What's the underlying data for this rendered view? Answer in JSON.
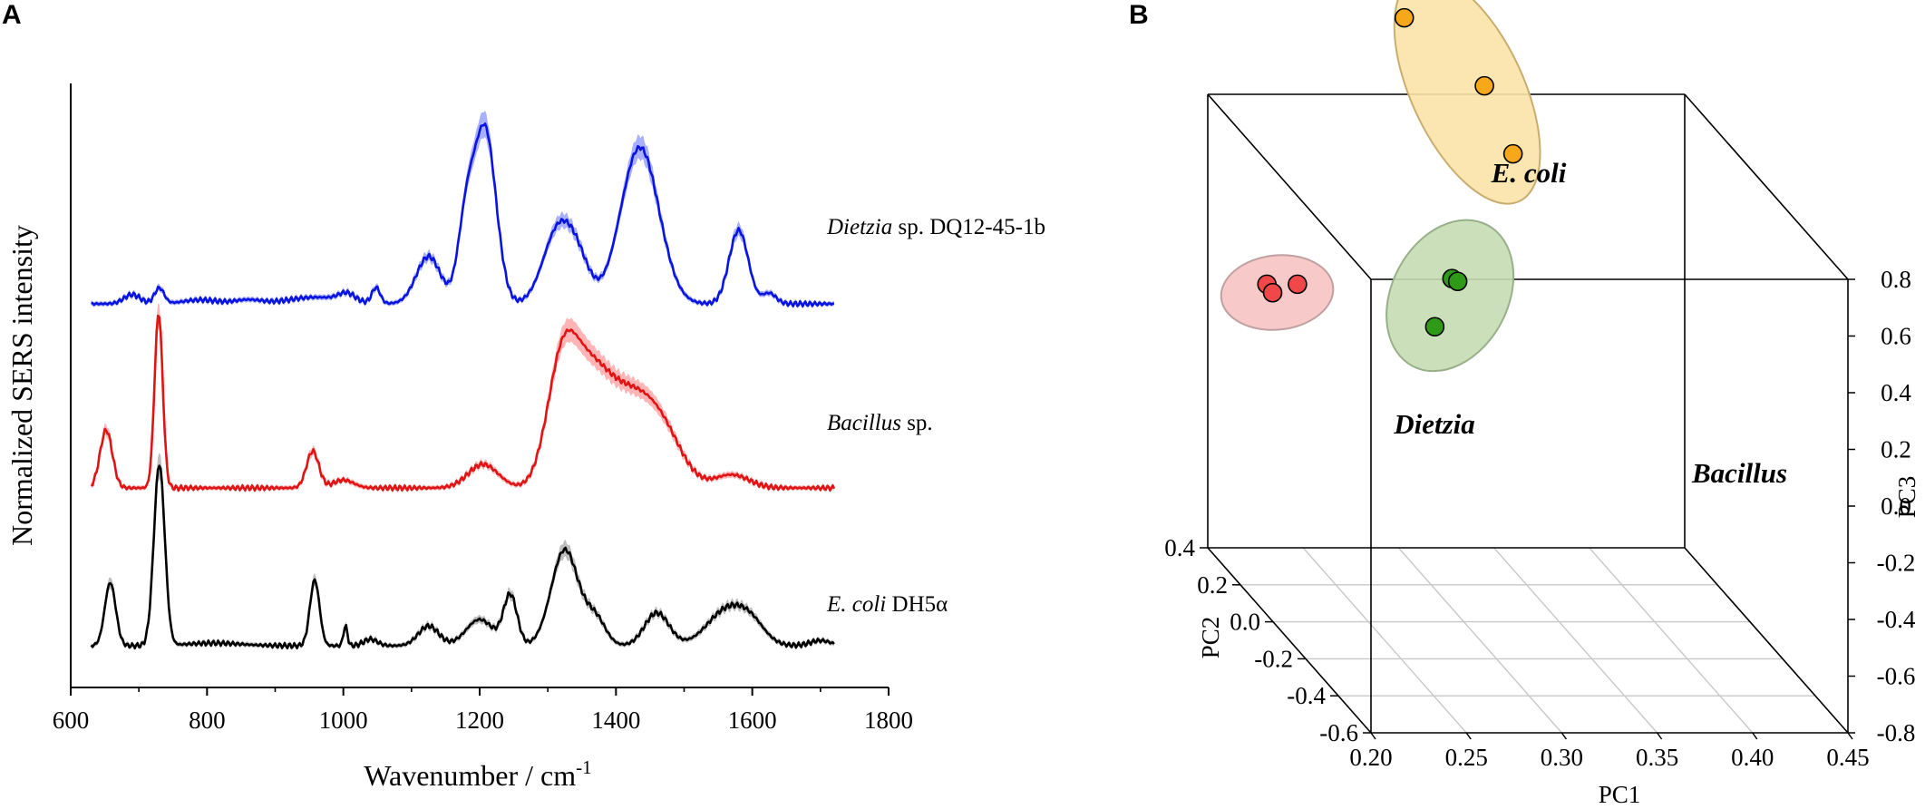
{
  "panels": {
    "a": "A",
    "b": "B"
  },
  "chart_data": [
    {
      "type": "line",
      "panel": "A",
      "title": "",
      "xlabel": "Wavenumber / cm",
      "xlabel_superscript": "-1",
      "ylabel": "Normalized SERS intensity",
      "xlim": [
        600,
        1800
      ],
      "xticks": [
        "600",
        "800",
        "1000",
        "1200",
        "1400",
        "1600",
        "1800"
      ],
      "y_ticks_shown": false,
      "series": [
        {
          "name": "Dietzia sp. DQ12-45-1b",
          "label_italic": "Dietzia",
          "label_rest": " sp. DQ12-45-1b",
          "color": "#0a14e0",
          "band_color": "#8c96ff",
          "offset": 2.55,
          "baseline": 0.05,
          "peaks": [
            [
              690,
              0.07,
              12
            ],
            [
              730,
              0.12,
              7
            ],
            [
              790,
              0.03,
              25
            ],
            [
              860,
              0.03,
              20
            ],
            [
              960,
              0.05,
              40
            ],
            [
              1005,
              0.06,
              12
            ],
            [
              1048,
              0.12,
              6
            ],
            [
              1125,
              0.36,
              18
            ],
            [
              1180,
              0.6,
              12
            ],
            [
              1208,
              1.32,
              16
            ],
            [
              1315,
              0.55,
              22
            ],
            [
              1345,
              0.25,
              18
            ],
            [
              1435,
              1.19,
              28
            ],
            [
              1580,
              0.56,
              14
            ],
            [
              1625,
              0.08,
              10
            ]
          ]
        },
        {
          "name": "Bacillus sp.",
          "label_italic": "Bacillus",
          "label_rest": " sp.",
          "color": "#e01414",
          "band_color": "#ff9c9c",
          "offset": 1.2,
          "baseline": 0.0,
          "peaks": [
            [
              652,
              0.44,
              9
            ],
            [
              729,
              1.33,
              6
            ],
            [
              955,
              0.28,
              9
            ],
            [
              1000,
              0.06,
              15
            ],
            [
              1205,
              0.18,
              22
            ],
            [
              1320,
              0.8,
              22
            ],
            [
              1360,
              0.75,
              30
            ],
            [
              1420,
              0.6,
              35
            ],
            [
              1470,
              0.33,
              30
            ],
            [
              1570,
              0.1,
              25
            ]
          ]
        },
        {
          "name": "E. coli DH5α",
          "label_italic": "E. coli",
          "label_rest": " DH5α",
          "color": "#000000",
          "band_color": "#a8a8a8",
          "offset": 0.0,
          "baseline": 0.0,
          "peaks": [
            [
              658,
              0.48,
              8
            ],
            [
              730,
              1.38,
              8
            ],
            [
              810,
              0.02,
              40
            ],
            [
              958,
              0.5,
              7
            ],
            [
              1003,
              0.15,
              3
            ],
            [
              1040,
              0.05,
              10
            ],
            [
              1125,
              0.15,
              15
            ],
            [
              1200,
              0.2,
              20
            ],
            [
              1245,
              0.38,
              10
            ],
            [
              1325,
              0.73,
              20
            ],
            [
              1370,
              0.2,
              15
            ],
            [
              1460,
              0.25,
              18
            ],
            [
              1565,
              0.28,
              30
            ],
            [
              1600,
              0.1,
              20
            ],
            [
              1700,
              0.04,
              15
            ]
          ]
        }
      ]
    },
    {
      "type": "scatter",
      "panel": "B",
      "projection": "3d",
      "title": "",
      "xlabel": "PC1",
      "ylabel": "PC2",
      "zlabel": "PC3",
      "xlim": [
        0.2,
        0.45
      ],
      "ylim": [
        -0.6,
        0.4
      ],
      "zlim": [
        -0.8,
        0.8
      ],
      "xticks": [
        "0.20",
        "0.25",
        "0.30",
        "0.35",
        "0.40",
        "0.45"
      ],
      "yticks": [
        "-0.6",
        "-0.4",
        "-0.2",
        "0.0",
        "0.2",
        "0.4"
      ],
      "zticks": [
        "-0.8",
        "-0.6",
        "-0.4",
        "-0.2",
        "0.0",
        "0.2",
        "0.4",
        "0.6",
        "0.8"
      ],
      "groups": [
        {
          "name": "E. coli",
          "color": "#f7a81a",
          "ellipse_color": "#fbe3a8",
          "ellipse_stroke": "#c9ad70",
          "points": [
            [
              0.303,
              0.4,
              1.07
            ],
            [
              0.345,
              0.4,
              0.83
            ],
            [
              0.36,
              0.4,
              0.59
            ]
          ]
        },
        {
          "name": "Dietzia",
          "color": "#f04848",
          "ellipse_color": "#f6c3c3",
          "ellipse_stroke": "#c0a0a0",
          "points": [
            [
              0.231,
              0.4,
              0.13
            ],
            [
              0.234,
              0.4,
              0.1
            ],
            [
              0.247,
              0.4,
              0.13
            ]
          ]
        },
        {
          "name": "Bacillus",
          "color": "#2f9a18",
          "ellipse_color": "#c4dcb2",
          "ellipse_stroke": "#98b089",
          "points": [
            [
              0.328,
              0.4,
              0.15
            ],
            [
              0.331,
              0.4,
              0.14
            ],
            [
              0.319,
              0.4,
              -0.02
            ]
          ]
        }
      ]
    }
  ]
}
